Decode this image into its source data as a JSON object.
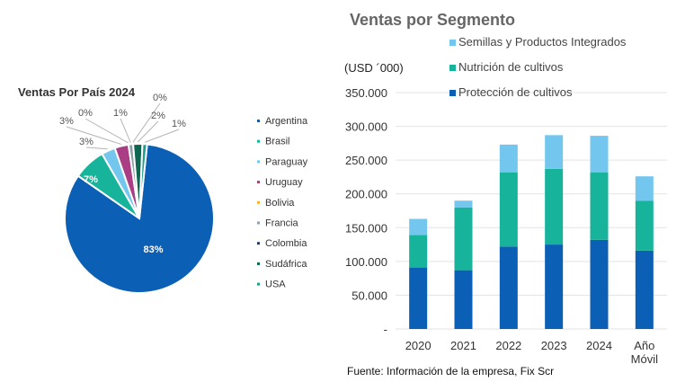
{
  "chart_data": [
    {
      "type": "pie",
      "title": "Ventas Por País 2024",
      "slices": [
        {
          "name": "Argentina",
          "value": 83,
          "label": "83%",
          "color": "#0B5FB5"
        },
        {
          "name": "Brasil",
          "value": 7,
          "label": "7%",
          "color": "#17B39A"
        },
        {
          "name": "Paraguay",
          "value": 3,
          "label": "3%",
          "color": "#73C7EE"
        },
        {
          "name": "Uruguay",
          "value": 3,
          "label": "3%",
          "color": "#A93E84"
        },
        {
          "name": "Bolivia",
          "value": 0,
          "label": "0%",
          "color": "#F2B233"
        },
        {
          "name": "Francia",
          "value": 1,
          "label": "1%",
          "color": "#8FA0AC"
        },
        {
          "name": "Colombia",
          "value": 0,
          "label": "0%",
          "color": "#1D3E6E"
        },
        {
          "name": "Sudáfrica",
          "value": 2,
          "label": "2%",
          "color": "#0F6650"
        },
        {
          "name": "USA",
          "value": 1,
          "label": "1%",
          "color": "#1FA08C"
        }
      ],
      "legend_placement": "right"
    },
    {
      "type": "bar",
      "stacked": true,
      "title": "Ventas por Segmento",
      "ylabel": "(USD ´000)",
      "categories": [
        "2020",
        "2021",
        "2022",
        "2023",
        "2024",
        "Año Móvil"
      ],
      "ylim": [
        0,
        350000
      ],
      "yticks": [
        0,
        50000,
        100000,
        150000,
        200000,
        250000,
        300000,
        350000
      ],
      "ytick_labels": [
        "-",
        "50.000",
        "100.000",
        "150.000",
        "200.000",
        "250.000",
        "300.000",
        "350.000"
      ],
      "grid": true,
      "legend_placement": "top",
      "series": [
        {
          "name": "Protección de cultivos",
          "color": "#0B5FB5",
          "values": [
            91000,
            87000,
            122000,
            125000,
            132000,
            116000
          ]
        },
        {
          "name": "Nutrición de cultivos",
          "color": "#17B39A",
          "values": [
            48000,
            93000,
            110000,
            112000,
            100000,
            74000
          ]
        },
        {
          "name": "Semillas y Productos Integrados",
          "color": "#73C7EE",
          "values": [
            24000,
            10000,
            41000,
            50000,
            54000,
            36000
          ]
        }
      ]
    }
  ],
  "source": "Fuente: Información de la empresa, Fix Scr"
}
